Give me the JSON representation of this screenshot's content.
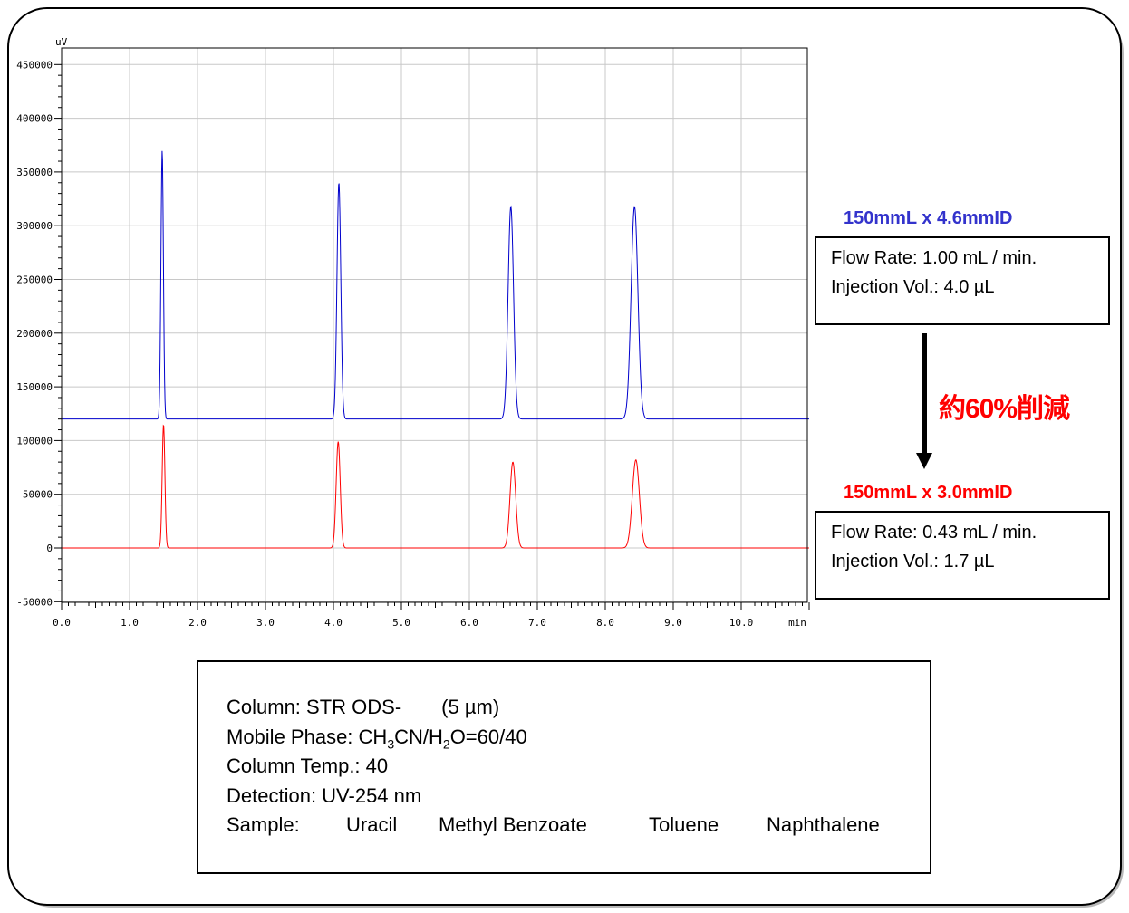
{
  "chart_data": {
    "type": "line",
    "ylabel": "uV",
    "xunit": "min",
    "xlim": [
      0.0,
      11.0
    ],
    "ylim": [
      -50000,
      460000
    ],
    "x_ticks": [
      "0.0",
      "1.0",
      "2.0",
      "3.0",
      "4.0",
      "5.0",
      "6.0",
      "7.0",
      "8.0",
      "9.0",
      "10.0"
    ],
    "y_ticks": [
      "450000",
      "400000",
      "350000",
      "300000",
      "250000",
      "200000",
      "150000",
      "100000",
      "50000",
      "0",
      "-50000"
    ],
    "grid": true,
    "series": [
      {
        "color": "#0000cc",
        "baseline": 120000,
        "peaks": [
          {
            "rt": 1.48,
            "height": 250000,
            "sigma": 0.018
          },
          {
            "rt": 4.08,
            "height": 220000,
            "sigma": 0.028
          },
          {
            "rt": 6.61,
            "height": 198000,
            "sigma": 0.04
          },
          {
            "rt": 8.43,
            "height": 198000,
            "sigma": 0.05
          }
        ]
      },
      {
        "color": "#ff0000",
        "baseline": 0,
        "peaks": [
          {
            "rt": 1.5,
            "height": 115000,
            "sigma": 0.02
          },
          {
            "rt": 4.07,
            "height": 99000,
            "sigma": 0.03
          },
          {
            "rt": 6.64,
            "height": 80000,
            "sigma": 0.042
          },
          {
            "rt": 8.45,
            "height": 82000,
            "sigma": 0.052
          }
        ]
      }
    ]
  },
  "columns": {
    "large": {
      "title": "150mmL x 4.6mmID",
      "title_color": "#3333cc",
      "flow_rate": "Flow Rate: 1.00 mL / min.",
      "injection": "Injection Vol.: 4.0 µL"
    },
    "small": {
      "title": "150mmL x 3.0mmID",
      "title_color": "#ff0000",
      "flow_rate": "Flow Rate: 0.43 mL / min.",
      "injection": "Injection Vol.: 1.7 µL"
    }
  },
  "reduction_label": "約60%削減",
  "conditions": {
    "column": "Column: STR ODS-",
    "column_particle": "(5 µm)",
    "mobile_phase_prefix": "Mobile Phase: CH",
    "mobile_phase_sub1": "3",
    "mobile_phase_mid": "CN/H",
    "mobile_phase_sub2": "2",
    "mobile_phase_suffix": "O=60/40",
    "column_temp": "Column Temp.: 40",
    "detection": "Detection: UV-254 nm",
    "sample_label": "Sample:",
    "samples": [
      "Uracil",
      "Methyl Benzoate",
      "Toluene",
      "Naphthalene"
    ]
  }
}
